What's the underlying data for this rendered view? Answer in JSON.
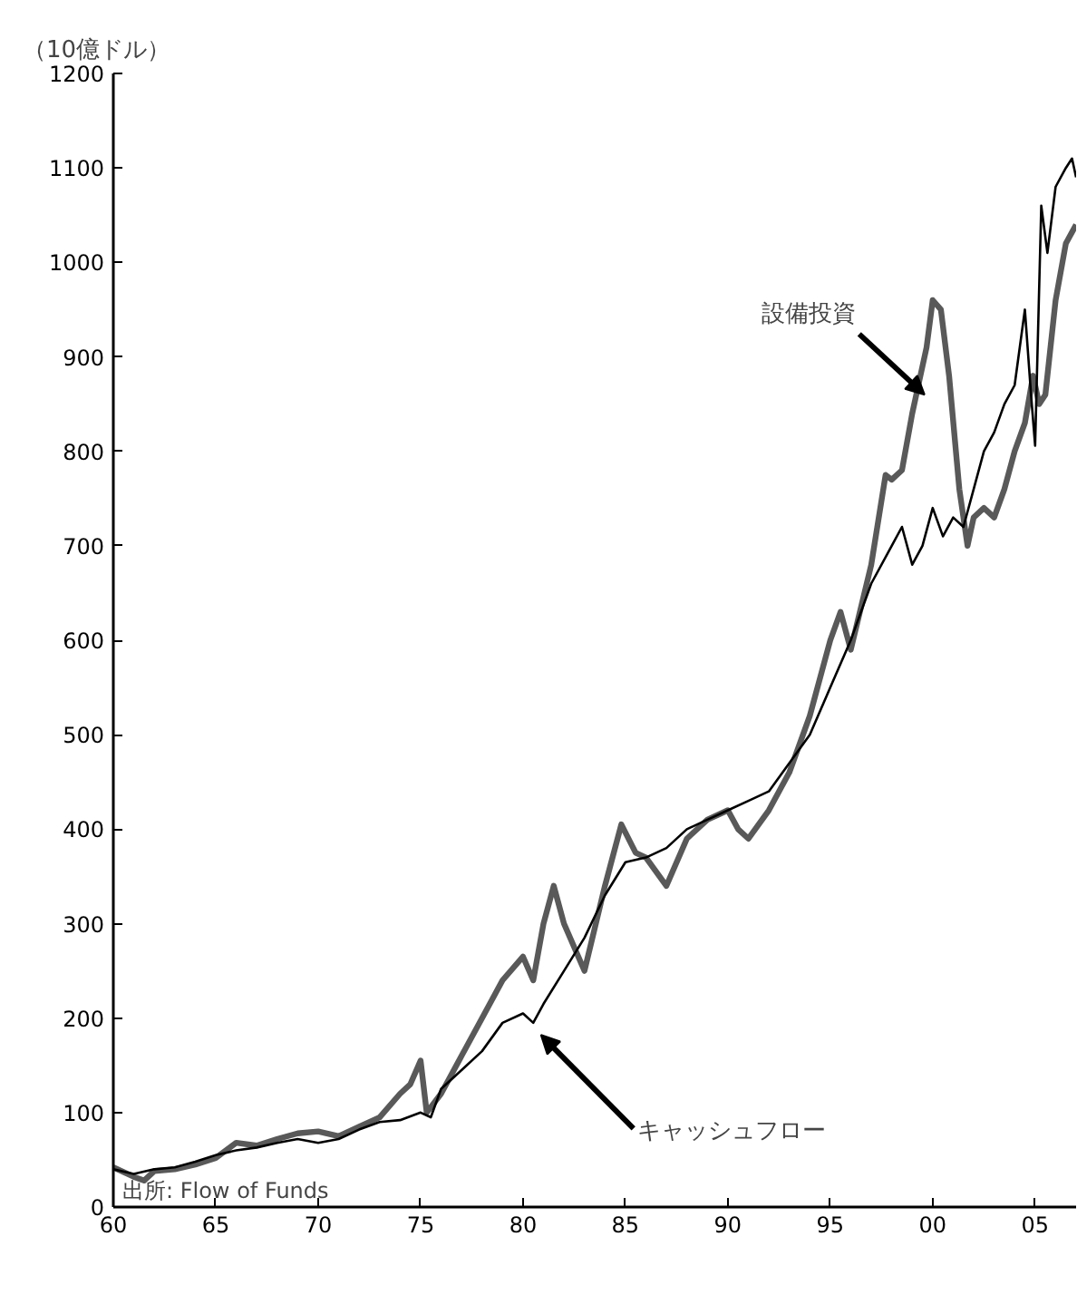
{
  "chart_data": {
    "type": "line",
    "ylabel": "（10億ドル）",
    "xlim": [
      1960,
      2007
    ],
    "ylim": [
      0,
      1200
    ],
    "xticks": [
      {
        "value": 1960,
        "label": "60"
      },
      {
        "value": 1965,
        "label": "65"
      },
      {
        "value": 1970,
        "label": "70"
      },
      {
        "value": 1975,
        "label": "75"
      },
      {
        "value": 1980,
        "label": "80"
      },
      {
        "value": 1985,
        "label": "85"
      },
      {
        "value": 1990,
        "label": "90"
      },
      {
        "value": 1995,
        "label": "95"
      },
      {
        "value": 2000,
        "label": "00"
      },
      {
        "value": 2005,
        "label": "05"
      }
    ],
    "yticks": [
      0,
      100,
      200,
      300,
      400,
      500,
      600,
      700,
      800,
      900,
      1000,
      1100,
      1200
    ],
    "grid": false,
    "marker": "none",
    "line_style": "solid",
    "series": [
      {
        "color": "#000000",
        "x": [
          1960,
          1961,
          1962,
          1963,
          1964,
          1965,
          1966,
          1967,
          1968,
          1969,
          1970,
          1971,
          1972,
          1973,
          1974,
          1975,
          1975.5,
          1976,
          1977,
          1978,
          1979,
          1980,
          1980.5,
          1981,
          1982,
          1983,
          1984,
          1985,
          1986,
          1987,
          1988,
          1989,
          1990,
          1991,
          1992,
          1993,
          1994,
          1995,
          1996,
          1997,
          1998,
          1998.5,
          1999,
          1999.5,
          2000,
          2000.5,
          2001,
          2001.5,
          2002,
          2002.5,
          2003,
          2003.5,
          2004,
          2004.5,
          2004.8,
          2005,
          2005.3,
          2005.6,
          2006,
          2006.5,
          2006.8,
          2007
        ],
        "values": [
          40,
          35,
          40,
          42,
          48,
          55,
          60,
          63,
          68,
          72,
          68,
          72,
          82,
          90,
          92,
          100,
          95,
          125,
          145,
          165,
          195,
          205,
          195,
          215,
          250,
          285,
          330,
          365,
          370,
          380,
          400,
          410,
          420,
          430,
          440,
          470,
          500,
          550,
          600,
          660,
          700,
          720,
          680,
          700,
          740,
          710,
          730,
          720,
          760,
          800,
          820,
          850,
          870,
          950,
          860,
          806,
          1060,
          1010,
          1080,
          1100,
          1110,
          1090
        ]
      },
      {
        "color": "#595959",
        "x": [
          1960,
          1961,
          1961.5,
          1962,
          1963,
          1964,
          1965,
          1966,
          1967,
          1968,
          1969,
          1970,
          1971,
          1972,
          1973,
          1974,
          1974.5,
          1975,
          1975.3,
          1976,
          1977,
          1978,
          1979,
          1980,
          1980.5,
          1981,
          1981.5,
          1982,
          1983,
          1984,
          1984.8,
          1985.5,
          1986,
          1987,
          1988,
          1989,
          1990,
          1990.5,
          1991,
          1992,
          1993,
          1994,
          1995,
          1995.5,
          1996,
          1997,
          1997.7,
          1998,
          1998.5,
          1999,
          1999.7,
          2000,
          2000.4,
          2000.8,
          2001.3,
          2001.7,
          2002,
          2002.5,
          2003,
          2003.5,
          2004,
          2004.5,
          2004.9,
          2005.2,
          2005.5,
          2006,
          2006.5,
          2007
        ],
        "values": [
          42,
          32,
          28,
          38,
          40,
          45,
          52,
          68,
          65,
          72,
          78,
          80,
          75,
          85,
          95,
          120,
          130,
          155,
          100,
          120,
          160,
          200,
          240,
          265,
          240,
          300,
          340,
          300,
          250,
          340,
          405,
          375,
          370,
          340,
          390,
          410,
          420,
          400,
          390,
          420,
          460,
          520,
          600,
          630,
          590,
          680,
          775,
          770,
          780,
          840,
          910,
          960,
          950,
          880,
          760,
          700,
          730,
          740,
          730,
          760,
          800,
          830,
          880,
          850,
          860,
          960,
          1020,
          1040
        ]
      }
    ],
    "annotations": [
      {
        "text": "設備投資",
        "x": 1999.6,
        "y": 860
      },
      {
        "text": "キャッシュフロー",
        "x": 1980.7,
        "y": 186
      },
      "出所: Flow of Funds"
    ]
  }
}
